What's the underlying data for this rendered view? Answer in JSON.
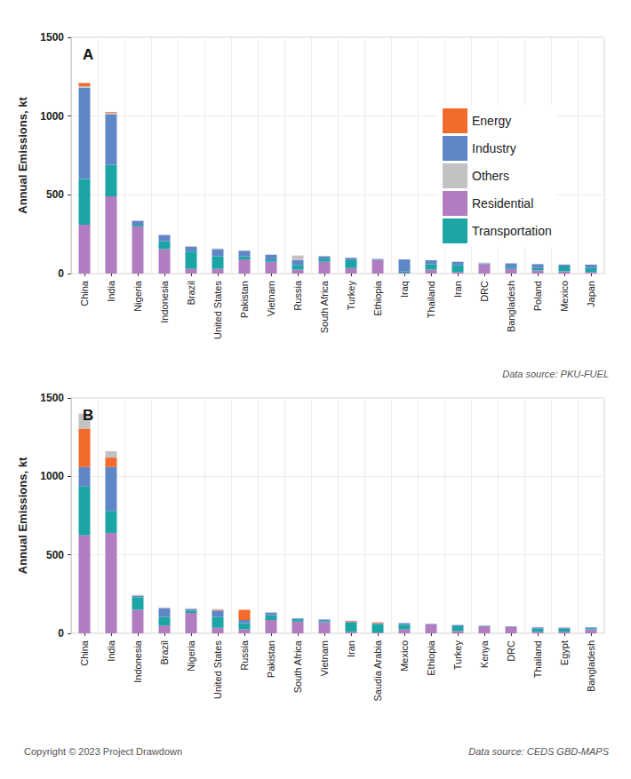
{
  "chart_data": [
    {
      "type": "bar",
      "title": "A",
      "y_label": "Annual Emissions, kt",
      "annotations": [
        "Data source: PKU-FUEL"
      ],
      "stacked": true,
      "grid": true,
      "legend": "right",
      "categories": [
        "China",
        "India",
        "Nigeria",
        "Indonesia",
        "Brazil",
        "United States",
        "Pakistan",
        "Vietnam",
        "Russia",
        "South Africa",
        "Turkey",
        "Ethiopia",
        "Iraq",
        "Thailand",
        "Iran",
        "DRC",
        "Bangladesh",
        "Poland",
        "Mexico",
        "Japan"
      ],
      "ylim": [
        0,
        1500
      ],
      "yticks": [
        0,
        500,
        1000,
        1500
      ],
      "series": [
        {
          "name": "Residential",
          "color": "#b27cc0",
          "values": [
            310,
            490,
            300,
            155,
            30,
            30,
            90,
            75,
            25,
            75,
            35,
            88,
            5,
            25,
            10,
            60,
            30,
            20,
            15,
            10
          ]
        },
        {
          "name": "Transportation",
          "color": "#1ba5a5",
          "values": [
            290,
            200,
            10,
            50,
            110,
            80,
            20,
            15,
            30,
            20,
            50,
            3,
            10,
            35,
            45,
            3,
            10,
            15,
            30,
            25
          ]
        },
        {
          "name": "Industry",
          "color": "#5f87c8",
          "values": [
            580,
            320,
            25,
            40,
            30,
            45,
            35,
            30,
            30,
            15,
            15,
            2,
            75,
            25,
            20,
            2,
            25,
            25,
            12,
            22
          ]
        },
        {
          "name": "Others",
          "color": "#c2c2c2",
          "values": [
            10,
            10,
            0,
            0,
            5,
            5,
            0,
            0,
            30,
            0,
            0,
            0,
            0,
            0,
            0,
            5,
            0,
            0,
            0,
            0
          ]
        },
        {
          "name": "Energy",
          "color": "#f26b2a",
          "values": [
            20,
            5,
            0,
            0,
            0,
            0,
            0,
            0,
            0,
            0,
            0,
            0,
            0,
            0,
            0,
            0,
            0,
            0,
            0,
            0
          ]
        }
      ]
    },
    {
      "type": "bar",
      "title": "B",
      "y_label": "Annual Emissions, kt",
      "annotations": [
        "Data source: CEDS GBD-MAPS",
        "Copyright © 2023 Project Drawdown"
      ],
      "stacked": true,
      "grid": true,
      "categories": [
        "China",
        "India",
        "Indonesia",
        "Brazil",
        "Nigeria",
        "United States",
        "Russia",
        "Pakistan",
        "South Africa",
        "Vietnam",
        "Iran",
        "Saudia Arabia",
        "Mexico",
        "Ethiopia",
        "Turkey",
        "Kenya",
        "DRC",
        "Thailand",
        "Egypt",
        "Bangladesh"
      ],
      "ylim": [
        0,
        1500
      ],
      "yticks": [
        0,
        500,
        1000,
        1500
      ],
      "series": [
        {
          "name": "Residential",
          "color": "#b27cc0",
          "values": [
            625,
            640,
            150,
            50,
            130,
            35,
            25,
            85,
            75,
            70,
            10,
            5,
            25,
            58,
            15,
            45,
            43,
            10,
            10,
            25
          ]
        },
        {
          "name": "Transportation",
          "color": "#1ba5a5",
          "values": [
            310,
            140,
            80,
            55,
            15,
            70,
            40,
            30,
            15,
            8,
            60,
            55,
            30,
            2,
            30,
            3,
            2,
            20,
            20,
            8
          ]
        },
        {
          "name": "Industry",
          "color": "#5f87c8",
          "values": [
            125,
            280,
            10,
            55,
            10,
            40,
            20,
            15,
            5,
            10,
            5,
            5,
            10,
            0,
            8,
            0,
            0,
            8,
            5,
            5
          ]
        },
        {
          "name": "Energy",
          "color": "#f26b2a",
          "values": [
            245,
            60,
            0,
            0,
            0,
            5,
            65,
            0,
            0,
            0,
            5,
            5,
            0,
            0,
            0,
            0,
            0,
            0,
            0,
            0
          ]
        },
        {
          "name": "Others",
          "color": "#c2c2c2",
          "values": [
            95,
            40,
            5,
            5,
            5,
            5,
            0,
            5,
            0,
            2,
            0,
            0,
            0,
            0,
            0,
            0,
            0,
            0,
            5,
            0
          ]
        }
      ]
    }
  ]
}
